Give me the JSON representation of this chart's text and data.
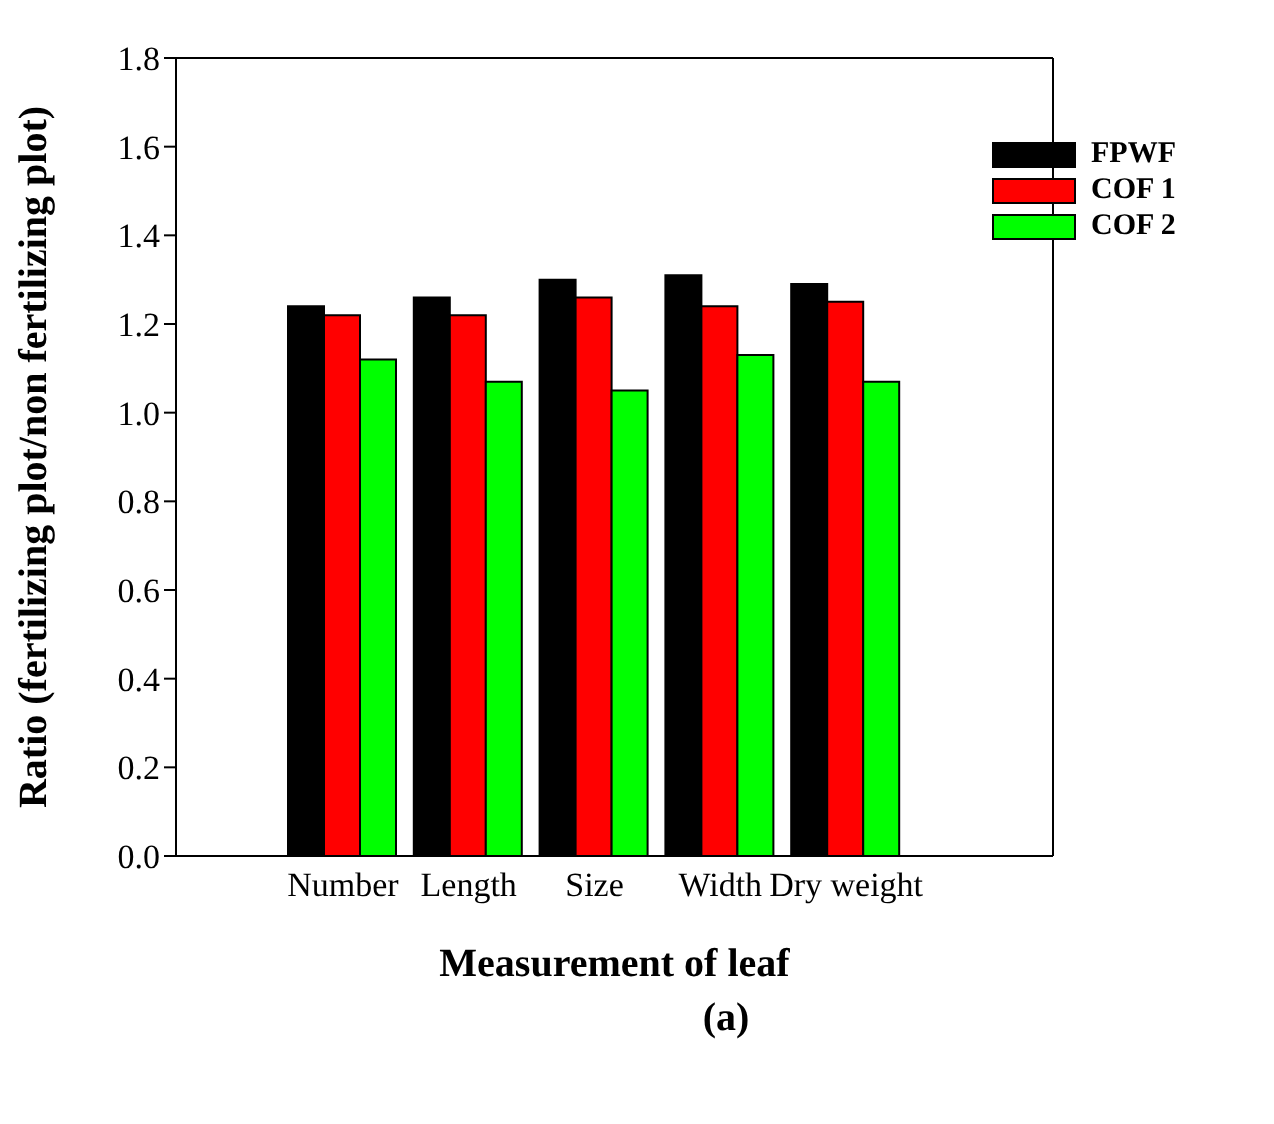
{
  "chart_data": {
    "type": "bar",
    "xlabel": "Measurement of leaf",
    "ylabel": "Ratio (fertilizing plot/non fertilizing plot)",
    "annotations": [
      "(a)"
    ],
    "categories": [
      "Number",
      "Length",
      "Size",
      "Width",
      "Dry weight"
    ],
    "series": [
      {
        "name": "FPWF",
        "color": "#000000",
        "values": [
          1.24,
          1.26,
          1.3,
          1.31,
          1.29
        ]
      },
      {
        "name": "COF 1",
        "color": "#ff0000",
        "values": [
          1.22,
          1.22,
          1.26,
          1.24,
          1.25
        ]
      },
      {
        "name": "COF 2",
        "color": "#00ff00",
        "values": [
          1.12,
          1.07,
          1.05,
          1.13,
          1.07
        ]
      }
    ],
    "ylim": [
      0,
      1.8
    ],
    "yticks": [
      {
        "value": 0,
        "label": "0.0"
      },
      0.2,
      0.4,
      0.6,
      0.8,
      {
        "value": 1,
        "label": "1.0"
      },
      1.2,
      1.4,
      1.6,
      1.8
    ],
    "grid": false,
    "legend": "top right"
  }
}
